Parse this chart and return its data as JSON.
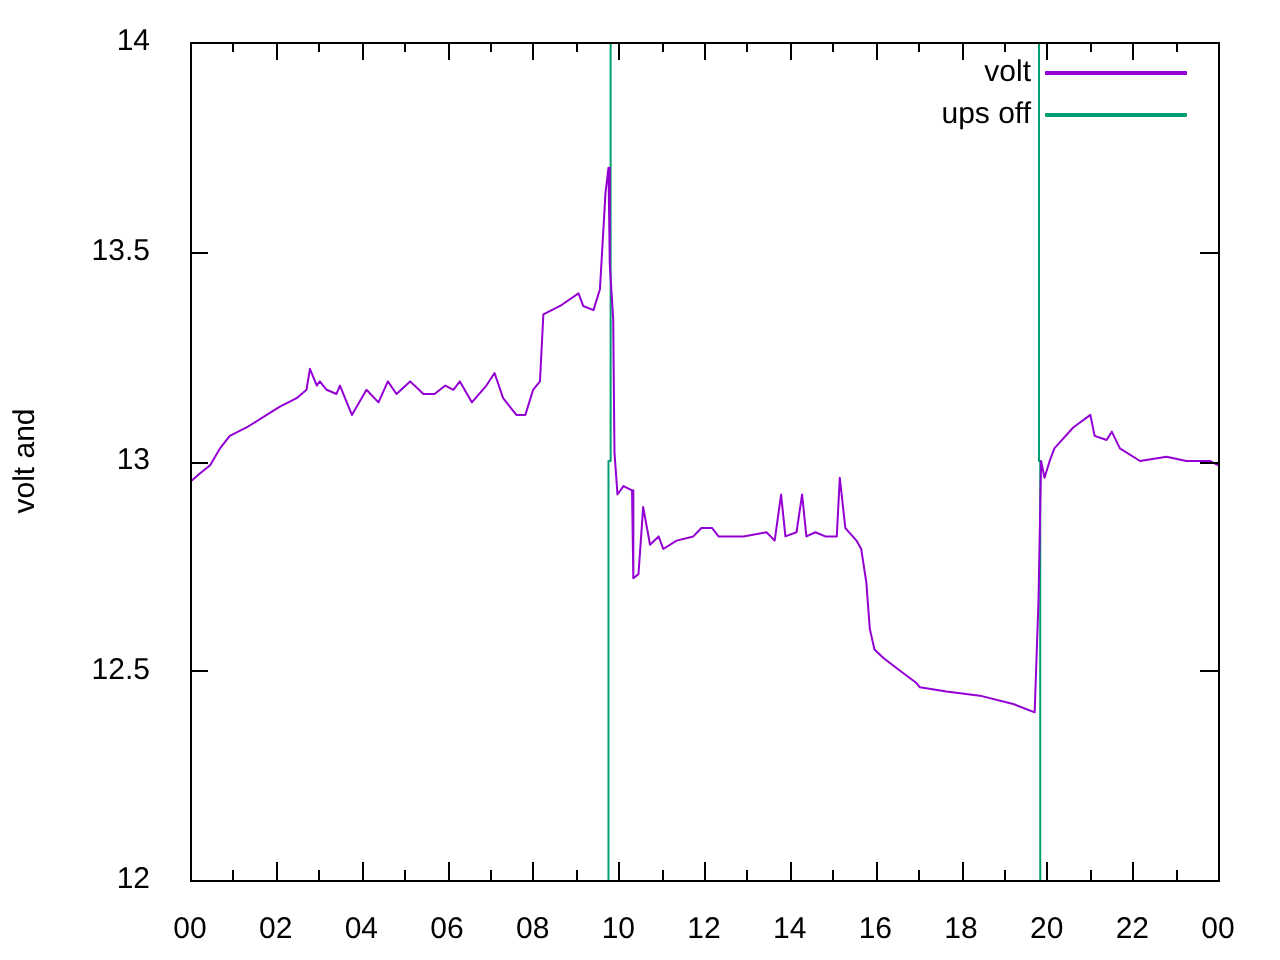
{
  "chart_data": {
    "type": "line",
    "ylabel": "volt and",
    "xlim": [
      0,
      24
    ],
    "ylim": [
      12,
      14
    ],
    "xticks": [
      {
        "value": 0,
        "label": "00"
      },
      {
        "value": 1,
        "label": null
      },
      {
        "value": 2,
        "label": "02"
      },
      {
        "value": 3,
        "label": null
      },
      {
        "value": 4,
        "label": "04"
      },
      {
        "value": 5,
        "label": null
      },
      {
        "value": 6,
        "label": "06"
      },
      {
        "value": 7,
        "label": null
      },
      {
        "value": 8,
        "label": "08"
      },
      {
        "value": 9,
        "label": null
      },
      {
        "value": 10,
        "label": "10"
      },
      {
        "value": 11,
        "label": null
      },
      {
        "value": 12,
        "label": "12"
      },
      {
        "value": 13,
        "label": null
      },
      {
        "value": 14,
        "label": "14"
      },
      {
        "value": 15,
        "label": null
      },
      {
        "value": 16,
        "label": "16"
      },
      {
        "value": 17,
        "label": null
      },
      {
        "value": 18,
        "label": "18"
      },
      {
        "value": 19,
        "label": null
      },
      {
        "value": 20,
        "label": "20"
      },
      {
        "value": 21,
        "label": null
      },
      {
        "value": 22,
        "label": "22"
      },
      {
        "value": 23,
        "label": null
      },
      {
        "value": 24,
        "label": "00"
      }
    ],
    "yticks": [
      12,
      12.5,
      13,
      13.5,
      14
    ],
    "grid": false,
    "legend": "top right",
    "marker": "none",
    "line_style": "solid",
    "series": [
      {
        "name": "volt",
        "color": "#9400d3",
        "x": [
          0,
          0.23,
          0.47,
          0.7,
          0.93,
          1.32,
          1.79,
          2.1,
          2.49,
          2.72,
          2.8,
          2.96,
          3.03,
          3.19,
          3.42,
          3.5,
          3.78,
          4.12,
          4.4,
          4.62,
          4.82,
          5.14,
          5.45,
          5.71,
          5.96,
          6.15,
          6.3,
          6.58,
          6.92,
          7.11,
          7.31,
          7.62,
          7.83,
          8.01,
          8.17,
          8.25,
          8.64,
          9.07,
          9.18,
          9.42,
          9.57,
          9.65,
          9.7,
          9.77,
          9.8,
          9.88,
          9.91,
          9.98,
          10.12,
          10.32,
          10.35,
          10.47,
          10.58,
          10.74,
          10.94,
          11.05,
          11.36,
          11.75,
          11.94,
          12.19,
          12.34,
          12.92,
          13.46,
          13.65,
          13.8,
          13.9,
          14.16,
          14.29,
          14.39,
          14.6,
          14.83,
          15.1,
          15.17,
          15.3,
          15.56,
          15.67,
          15.79,
          15.87,
          15.98,
          16.19,
          16.57,
          16.96,
          17.04,
          17.66,
          18.44,
          19.22,
          19.72,
          19.81,
          19.87,
          19.95,
          20.07,
          20.18,
          20.62,
          21.02,
          21.12,
          21.4,
          21.52,
          21.71,
          22.18,
          22.8,
          23.26,
          23.81,
          24
        ],
        "values": [
          12.95,
          12.97,
          12.99,
          13.03,
          13.06,
          13.08,
          13.11,
          13.13,
          13.15,
          13.17,
          13.22,
          13.18,
          13.19,
          13.17,
          13.16,
          13.18,
          13.11,
          13.17,
          13.14,
          13.19,
          13.16,
          13.19,
          13.16,
          13.16,
          13.18,
          13.17,
          13.19,
          13.14,
          13.18,
          13.21,
          13.15,
          13.11,
          13.11,
          13.17,
          13.19,
          13.35,
          13.37,
          13.4,
          13.37,
          13.36,
          13.41,
          13.55,
          13.64,
          13.7,
          13.47,
          13.34,
          13.02,
          12.92,
          12.94,
          12.93,
          12.72,
          12.73,
          12.89,
          12.8,
          12.82,
          12.79,
          12.81,
          12.82,
          12.84,
          12.84,
          12.82,
          12.82,
          12.83,
          12.81,
          12.92,
          12.82,
          12.83,
          12.92,
          12.82,
          12.83,
          12.82,
          12.82,
          12.96,
          12.84,
          12.81,
          12.79,
          12.71,
          12.6,
          12.55,
          12.53,
          12.5,
          12.47,
          12.46,
          12.45,
          12.44,
          12.42,
          12.4,
          12.67,
          13,
          12.96,
          13,
          13.03,
          13.08,
          13.11,
          13.06,
          13.05,
          13.07,
          13.03,
          13,
          13.01,
          13,
          13,
          12.99
        ]
      },
      {
        "name": "ups off",
        "color": "#009e73",
        "x": [
          9.77,
          9.77,
          9.82,
          9.82,
          19.82,
          19.82,
          19.85,
          19.85
        ],
        "values": [
          12,
          13,
          13,
          14,
          14,
          13,
          13,
          12
        ]
      }
    ]
  }
}
